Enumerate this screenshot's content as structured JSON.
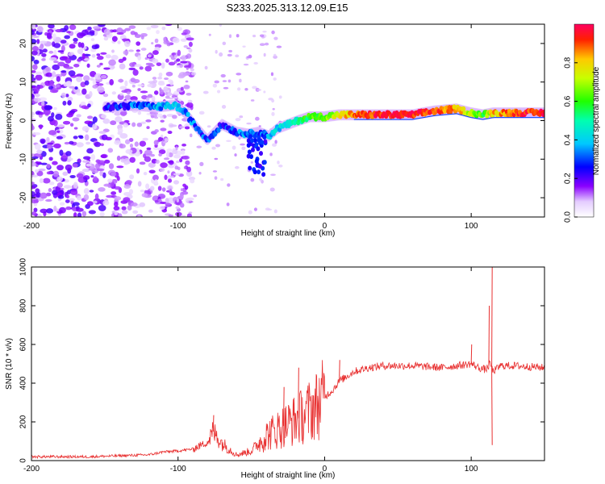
{
  "title": "S233.2025.313.12.09.E15",
  "colors": {
    "snr_line": "#e83030",
    "frame": "#000000",
    "ridge_core": "#ff2020"
  },
  "chart_data": [
    {
      "type": "heatmap",
      "name": "spectrogram",
      "xlabel": "Height of straight line (km)",
      "ylabel": "Frequency (Hz)",
      "xlim": [
        -200,
        150
      ],
      "ylim": [
        -25,
        25
      ],
      "xticks": [
        "-200",
        "-100",
        "0",
        "100"
      ],
      "xtick_values": [
        -200,
        -100,
        0,
        100
      ],
      "yticks": [
        "20",
        "10",
        "0",
        "-10",
        "-20"
      ],
      "ytick_values": [
        20,
        10,
        0,
        -10,
        -20
      ],
      "colorbar": {
        "label": "Normalized spectral amplitude",
        "ticks": [
          "0.0",
          "0.2",
          "0.4",
          "0.6",
          "0.8"
        ],
        "tick_values": [
          0.0,
          0.2,
          0.4,
          0.6,
          0.8
        ],
        "range": [
          0,
          1
        ]
      },
      "ridge": {
        "x": [
          -145,
          -130,
          -115,
          -102,
          -95,
          -88,
          -80,
          -70,
          -60,
          -52,
          -45,
          -38,
          -32,
          -25,
          -18,
          -10,
          0,
          10,
          20,
          40,
          60,
          75,
          90,
          100,
          108,
          115,
          130,
          150
        ],
        "freq": [
          3.5,
          4.0,
          3.5,
          4.0,
          2.0,
          -1.5,
          -5.0,
          -1.0,
          -3.0,
          -3.5,
          -3.0,
          -4.0,
          -2.0,
          -1.0,
          0.0,
          1.0,
          1.0,
          1.5,
          1.5,
          1.5,
          1.5,
          2.5,
          3.0,
          2.0,
          1.5,
          2.0,
          2.0,
          2.0
        ],
        "amplitude": [
          0.25,
          0.3,
          0.35,
          0.4,
          0.35,
          0.3,
          0.3,
          0.25,
          0.3,
          0.35,
          0.3,
          0.35,
          0.4,
          0.45,
          0.5,
          0.6,
          0.65,
          0.75,
          0.85,
          0.95,
          0.95,
          0.9,
          0.85,
          0.7,
          0.6,
          0.8,
          0.9,
          0.95
        ]
      },
      "noise_region_x": [
        -200,
        -120
      ]
    },
    {
      "type": "line",
      "name": "snr",
      "xlabel": "Height of straight line (km)",
      "ylabel": "SNR (10 * v/v)",
      "xlim": [
        -200,
        150
      ],
      "ylim": [
        0,
        1000
      ],
      "xticks": [
        "-200",
        "-100",
        "0",
        "100"
      ],
      "xtick_values": [
        -200,
        -100,
        0,
        100
      ],
      "yticks": [
        "0",
        "200",
        "400",
        "600",
        "800",
        "1000"
      ],
      "ytick_values": [
        0,
        200,
        400,
        600,
        800,
        1000
      ],
      "series": [
        {
          "name": "SNR",
          "x": [
            -200,
            -180,
            -160,
            -140,
            -120,
            -110,
            -100,
            -90,
            -80,
            -76,
            -70,
            -60,
            -50,
            -40,
            -35,
            -30,
            -25,
            -20,
            -15,
            -10,
            -5,
            0,
            5,
            10,
            20,
            30,
            40,
            60,
            80,
            100,
            105,
            110,
            113,
            115,
            120,
            130,
            150
          ],
          "y": [
            20,
            20,
            20,
            25,
            30,
            45,
            50,
            60,
            95,
            150,
            90,
            30,
            50,
            130,
            150,
            170,
            190,
            210,
            230,
            260,
            290,
            330,
            360,
            410,
            460,
            480,
            490,
            490,
            480,
            500,
            480,
            470,
            500,
            460,
            490,
            490,
            480
          ],
          "spikes": [
            {
              "x": -76,
              "y": 235
            },
            {
              "x": -28,
              "y": 380
            },
            {
              "x": -18,
              "y": 480
            },
            {
              "x": 10,
              "y": 520
            },
            {
              "x": 100,
              "y": 600
            },
            {
              "x": 112,
              "y": 800
            },
            {
              "x": 114,
              "y": 1000
            },
            {
              "x": 114,
              "y": 80
            }
          ]
        }
      ]
    }
  ]
}
